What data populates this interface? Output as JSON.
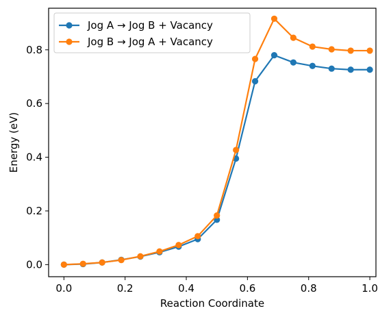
{
  "chart_data": {
    "type": "line",
    "title": "",
    "xlabel": "Reaction Coordinate",
    "ylabel": "Energy (eV)",
    "xlim": [
      -0.05,
      1.02
    ],
    "ylim": [
      -0.045,
      0.955
    ],
    "xticks": [
      0.0,
      0.2,
      0.4,
      0.6,
      0.8,
      1.0
    ],
    "xtick_labels": [
      "0.0",
      "0.2",
      "0.4",
      "0.6",
      "0.8",
      "1.0"
    ],
    "yticks": [
      0.0,
      0.2,
      0.4,
      0.6,
      0.8
    ],
    "ytick_labels": [
      "0.0",
      "0.2",
      "0.4",
      "0.6",
      "0.8"
    ],
    "grid": false,
    "legend_position": "top-left",
    "x": [
      0.0,
      0.0625,
      0.125,
      0.1875,
      0.25,
      0.3125,
      0.375,
      0.4375,
      0.5,
      0.5625,
      0.625,
      0.6875,
      0.75,
      0.8125,
      0.875,
      0.9375,
      1.0
    ],
    "series": [
      {
        "name": "Jog A → Jog B + Vacancy",
        "color": "#1f77b4",
        "values": [
          0.0,
          0.002,
          0.008,
          0.018,
          0.03,
          0.046,
          0.067,
          0.095,
          0.167,
          0.395,
          0.683,
          0.78,
          0.753,
          0.74,
          0.73,
          0.726,
          0.726
        ]
      },
      {
        "name": "Jog B → Jog A + Vacancy",
        "color": "#ff7f0e",
        "values": [
          0.0,
          0.003,
          0.008,
          0.017,
          0.031,
          0.049,
          0.073,
          0.106,
          0.183,
          0.427,
          0.766,
          0.916,
          0.845,
          0.812,
          0.802,
          0.797,
          0.797
        ]
      }
    ]
  }
}
